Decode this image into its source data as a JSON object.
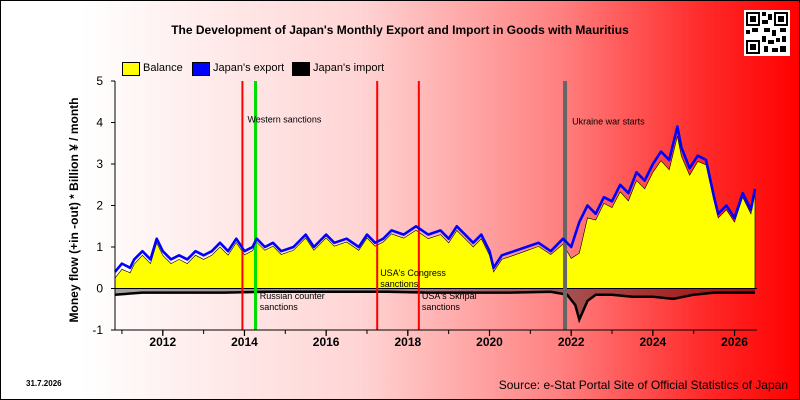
{
  "header": {
    "title": "The Development of Japan's Monthly Export and Import in Goods with Mauritius"
  },
  "footer": {
    "date": "31.7.2026",
    "source": "Source: e-Stat Portal Site of Official Statistics of Japan"
  },
  "colors": {
    "balance": "#ffff00",
    "export": "#0000ff",
    "import": "#000000",
    "sanction_line": "#ff0000",
    "green_line": "#00dd00",
    "war_line": "#666666"
  },
  "chart_data": {
    "type": "area",
    "title": "The Development of Japan's Monthly Export and Import in Goods with Mauritius",
    "ylabel": "Money flow (+in -out) * Billion ¥ / month",
    "xlabel": "",
    "ylim": [
      -1,
      5
    ],
    "yticks": [
      "-1",
      "0",
      "1",
      "2",
      "3",
      "4",
      "5"
    ],
    "xlim": [
      2010.83,
      2026.55
    ],
    "xticks": [
      "2012",
      "2014",
      "2016",
      "2018",
      "2020",
      "2022",
      "2024",
      "2026"
    ],
    "grid": false,
    "legend_placement": "top-left",
    "legend": [
      "Balance",
      "Japan's export",
      "Japan's import"
    ],
    "series": [
      {
        "name": "Japan's export",
        "x": [
          2010.83,
          2011.0,
          2011.2,
          2011.3,
          2011.5,
          2011.7,
          2011.85,
          2012.0,
          2012.2,
          2012.4,
          2012.6,
          2012.8,
          2013.0,
          2013.2,
          2013.4,
          2013.6,
          2013.8,
          2014.0,
          2014.2,
          2014.3,
          2014.5,
          2014.7,
          2014.9,
          2015.2,
          2015.5,
          2015.7,
          2016.0,
          2016.2,
          2016.5,
          2016.8,
          2017.0,
          2017.2,
          2017.4,
          2017.6,
          2017.9,
          2018.2,
          2018.5,
          2018.8,
          2019.0,
          2019.2,
          2019.4,
          2019.6,
          2019.8,
          2020.0,
          2020.1,
          2020.3,
          2020.6,
          2020.9,
          2021.2,
          2021.5,
          2021.8,
          2022.0,
          2022.2,
          2022.4,
          2022.6,
          2022.8,
          2023.0,
          2023.2,
          2023.4,
          2023.6,
          2023.8,
          2024.0,
          2024.2,
          2024.4,
          2024.6,
          2024.7,
          2024.9,
          2025.1,
          2025.3,
          2025.5,
          2025.6,
          2025.8,
          2026.0,
          2026.2,
          2026.4,
          2026.5
        ],
        "y": [
          0.4,
          0.6,
          0.5,
          0.7,
          0.9,
          0.7,
          1.2,
          0.9,
          0.7,
          0.8,
          0.7,
          0.9,
          0.8,
          0.9,
          1.1,
          0.9,
          1.2,
          0.9,
          1.0,
          1.2,
          1.0,
          1.1,
          0.9,
          1.0,
          1.3,
          1.0,
          1.3,
          1.1,
          1.2,
          1.0,
          1.3,
          1.1,
          1.2,
          1.4,
          1.3,
          1.5,
          1.3,
          1.4,
          1.2,
          1.5,
          1.3,
          1.1,
          1.3,
          0.9,
          0.5,
          0.8,
          0.9,
          1.0,
          1.1,
          0.9,
          1.2,
          1.0,
          1.6,
          2.0,
          1.8,
          2.2,
          2.1,
          2.5,
          2.3,
          2.8,
          2.6,
          3.0,
          3.3,
          3.1,
          3.9,
          3.4,
          2.9,
          3.2,
          3.1,
          2.2,
          1.8,
          2.0,
          1.7,
          2.3,
          1.9,
          2.4
        ]
      },
      {
        "name": "Japan's import",
        "x": [
          2010.83,
          2011.5,
          2012.5,
          2013.5,
          2014.5,
          2015.5,
          2016.5,
          2017.5,
          2018.5,
          2019.5,
          2020.5,
          2021.5,
          2021.9,
          2022.1,
          2022.2,
          2022.4,
          2022.6,
          2023.0,
          2023.5,
          2024.0,
          2024.5,
          2025.0,
          2025.5,
          2026.0,
          2026.5
        ],
        "y": [
          -0.15,
          -0.1,
          -0.1,
          -0.1,
          -0.08,
          -0.08,
          -0.08,
          -0.08,
          -0.1,
          -0.1,
          -0.1,
          -0.08,
          -0.15,
          -0.4,
          -0.75,
          -0.3,
          -0.15,
          -0.15,
          -0.2,
          -0.2,
          -0.25,
          -0.15,
          -0.1,
          -0.1,
          -0.1
        ]
      },
      {
        "name": "Balance",
        "derived": "export + import"
      }
    ],
    "annotations": [
      {
        "label": "",
        "x": 2013.95,
        "type": "red"
      },
      {
        "label": "",
        "x": 2014.27,
        "type": "green"
      },
      {
        "label": "",
        "x": 2017.25,
        "type": "red"
      },
      {
        "label": "",
        "x": 2018.27,
        "type": "red"
      },
      {
        "label": "",
        "x": 2021.85,
        "type": "gray"
      }
    ],
    "annotation_texts": [
      {
        "text": "Western sanctions",
        "x": 2014.0,
        "y": 4.0
      },
      {
        "text": "Russian counter sanctions",
        "x": 2014.3,
        "y": -0.25
      },
      {
        "text": "USA's Congress sanctions",
        "x": 2017.25,
        "y": 0.3
      },
      {
        "text": "USA's Skripal sanctions",
        "x": 2018.27,
        "y": -0.25
      },
      {
        "text": "Ukraine war starts",
        "x": 2021.95,
        "y": 3.95
      }
    ]
  }
}
